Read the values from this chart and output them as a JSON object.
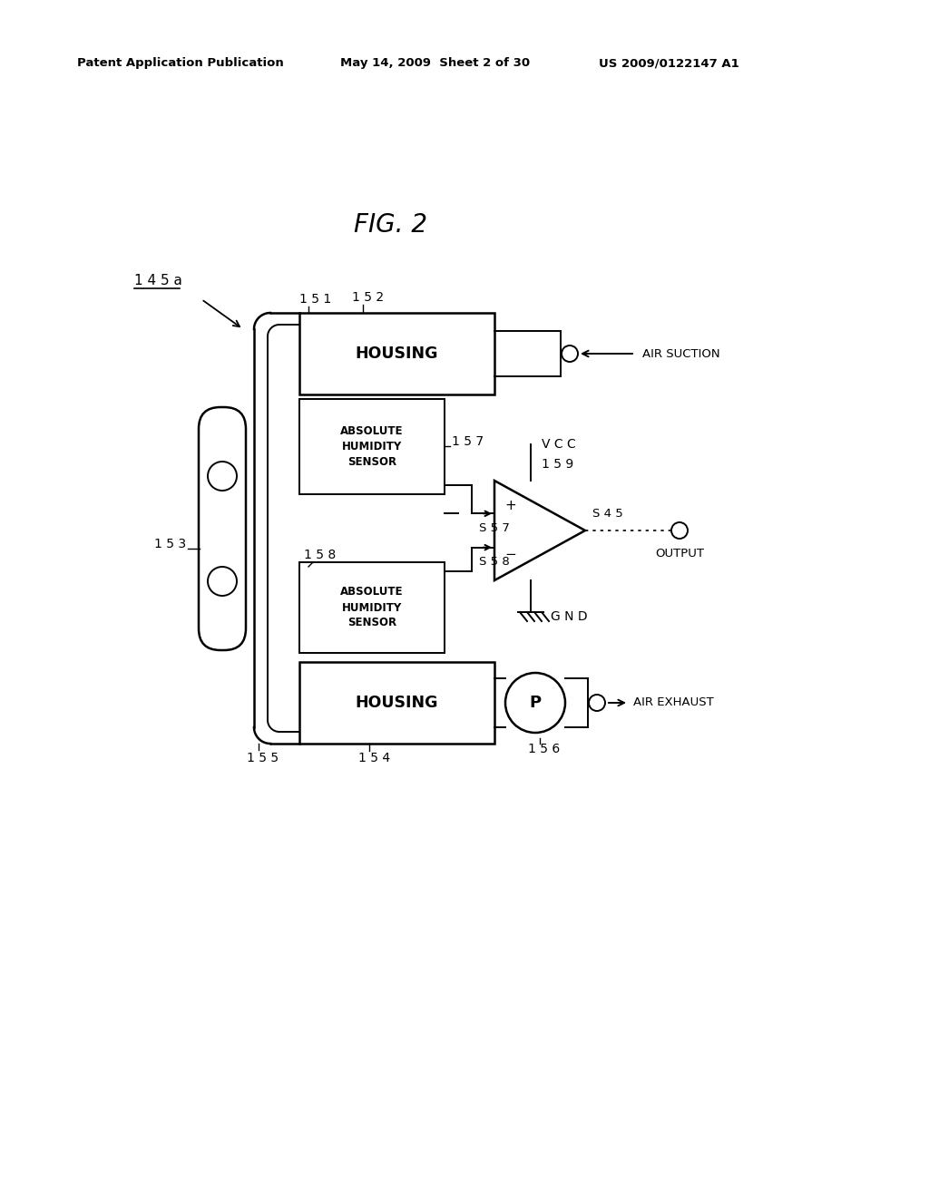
{
  "bg_color": "#ffffff",
  "header_left": "Patent Application Publication",
  "header_mid": "May 14, 2009  Sheet 2 of 30",
  "header_right": "US 2009/0122147 A1",
  "fig_title": "FIG. 2",
  "label_145a": "1 4 5 a",
  "label_151": "1 5 1",
  "label_152": "1 5 2",
  "label_153": "1 5 3",
  "label_154": "1 5 4",
  "label_155": "1 5 5",
  "label_156": "1 5 6",
  "label_157": "1 5 7",
  "label_158": "1 5 8",
  "label_159": "1 5 9",
  "label_s57": "S 5 7",
  "label_s58": "S 5 8",
  "label_s45": "S 4 5",
  "label_vcc": "V C C",
  "label_gnd": "G N D",
  "label_housing_top": "HOUSING",
  "label_housing_bot": "HOUSING",
  "label_abs_hum_top": "ABSOLUTE\nHUMIDITY\nSENSOR",
  "label_abs_hum_bot": "ABSOLUTE\nHUMIDITY\nSENSOR",
  "label_air_suction": "AIR SUCTION",
  "label_air_exhaust": "AIR EXHAUST",
  "label_output": "OUTPUT",
  "label_p": "P",
  "line_color": "#000000",
  "text_color": "#000000",
  "lw_thick": 1.8,
  "lw_medium": 1.4,
  "lw_thin": 1.0
}
